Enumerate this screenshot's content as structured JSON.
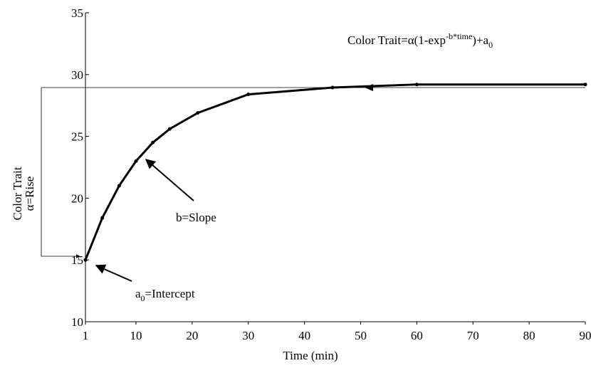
{
  "chart_data": {
    "type": "line",
    "x_label": "Time (min)",
    "y_label": [
      "Color Trait",
      "α=Rise"
    ],
    "x": [
      1,
      4,
      7,
      10,
      13,
      16,
      21,
      30,
      45,
      60,
      90
    ],
    "series": [
      {
        "color": "#000000",
        "values": [
          15,
          18.4,
          21,
          23,
          24.5,
          25.6,
          26.9,
          28.4,
          28.95,
          29.2,
          29.2
        ]
      }
    ],
    "xlim": [
      1,
      90
    ],
    "xticks": [
      1,
      10,
      20,
      30,
      40,
      50,
      60,
      70,
      80,
      90
    ],
    "ylim": [
      10,
      35
    ],
    "yticks": [
      10,
      15,
      20,
      25,
      30,
      35
    ],
    "formula": {
      "main": "Color Trait=α(1-exp",
      "sup": "-b*time",
      "end": ")+a",
      "sub": "0"
    },
    "slope_label": "b=Slope",
    "intercept_label": {
      "main": "a",
      "sub": "0",
      "end": "=Intercept"
    }
  }
}
